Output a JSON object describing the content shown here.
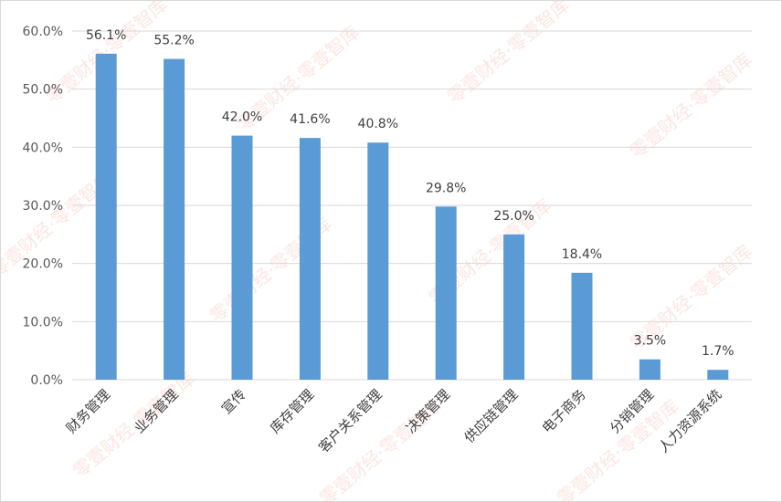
{
  "chart_data": {
    "type": "bar",
    "categories": [
      "财务管理",
      "业务管理",
      "宣传",
      "库存管理",
      "客户关系管理",
      "决策管理",
      "供应链管理",
      "电子商务",
      "分销管理",
      "人力资源系统"
    ],
    "values": [
      56.1,
      55.2,
      42.0,
      41.6,
      40.8,
      29.8,
      25.0,
      18.4,
      3.5,
      1.7
    ],
    "data_labels": [
      "56.1%",
      "55.2%",
      "42.0%",
      "41.6%",
      "40.8%",
      "29.8%",
      "25.0%",
      "18.4%",
      "3.5%",
      "1.7%"
    ],
    "y_ticks": [
      0,
      10,
      20,
      30,
      40,
      50,
      60
    ],
    "y_tick_labels": [
      "0.0%",
      "10.0%",
      "20.0%",
      "30.0%",
      "40.0%",
      "50.0%",
      "60.0%"
    ],
    "ylim": [
      0,
      60
    ],
    "grid": true,
    "bar_color": "#5b9bd5",
    "title": "",
    "xlabel": "",
    "ylabel": ""
  },
  "watermark": {
    "text": "零壹财经·零壹智库",
    "color": "#f2a892"
  }
}
